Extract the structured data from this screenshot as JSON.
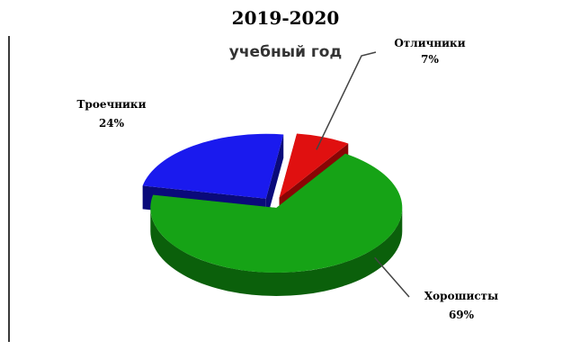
{
  "chart_data": {
    "type": "pie",
    "title": "2019-2020",
    "subtitle": "учебный год",
    "slices": [
      {
        "name": "Отличники",
        "value": 7,
        "label": "7%",
        "color": "#e01010",
        "side": "#8a0505"
      },
      {
        "name": "Хорошисты",
        "value": 69,
        "label": "69%",
        "color": "#16a316",
        "side": "#0b600b"
      },
      {
        "name": "Троечники",
        "value": 24,
        "label": "24%",
        "color": "#1a1aee",
        "side": "#0a0a7a"
      }
    ]
  }
}
